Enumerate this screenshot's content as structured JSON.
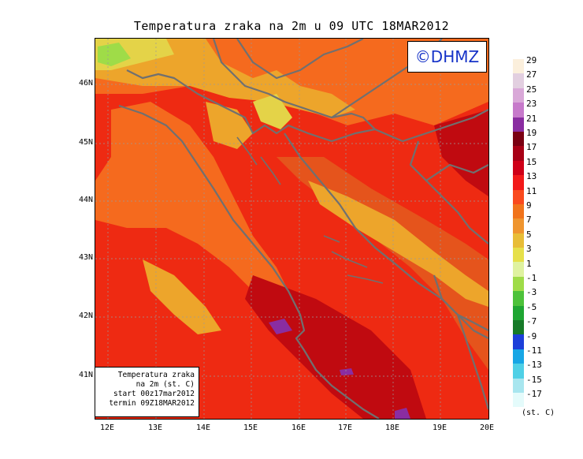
{
  "title": "Temperatura zraka na 2m u 09 UTC 18MAR2012",
  "logo": "©DHMZ",
  "info": {
    "line1": "Temperatura zraka",
    "line2": "na 2m (st. C)",
    "line3": "start 00z17mar2012",
    "line4": "termin 09Z18MAR2012"
  },
  "lat_ticks": [
    "46N",
    "45N",
    "44N",
    "43N",
    "42N",
    "41N"
  ],
  "lon_ticks": [
    "12E",
    "13E",
    "14E",
    "15E",
    "16E",
    "17E",
    "18E",
    "19E",
    "20E"
  ],
  "legend": {
    "unit": "(st. C)",
    "labels": [
      "29",
      "27",
      "25",
      "23",
      "21",
      "19",
      "17",
      "15",
      "13",
      "11",
      "9",
      "7",
      "5",
      "3",
      "1",
      "-1",
      "-3",
      "-5",
      "-7",
      "-9",
      "-11",
      "-13",
      "-15",
      "-17"
    ],
    "colors": [
      "#fbefdc",
      "#e2cfe0",
      "#d9a8d8",
      "#c77acb",
      "#8a2da1",
      "#7a0012",
      "#a80016",
      "#cf0018",
      "#f21a1a",
      "#fa4a1e",
      "#f1741c",
      "#ef952f",
      "#e8bd37",
      "#e6e04a",
      "#dff2a0",
      "#9fdc48",
      "#4dc23a",
      "#1fa632",
      "#167a28",
      "#1d3fd9",
      "#17a6e5",
      "#4fd0e6",
      "#a8e6ef",
      "#e4fbfb"
    ]
  },
  "colors": {
    "sea_main": "#ee2a12",
    "sea_deep": "#c00a10",
    "land_warm": "#f56a1e",
    "land_cool": "#eda52b",
    "land_cold": "#e4d348",
    "border": "#707070",
    "logo_text": "#1633c8"
  }
}
